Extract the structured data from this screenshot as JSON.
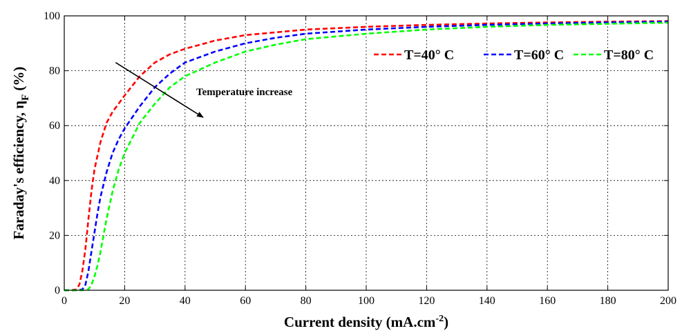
{
  "chart_data": {
    "type": "line",
    "xlabel": "Current density (mA.cm",
    "xlabel_sup": "-2",
    "xlabel_end": ")",
    "ylabel": "Faraday's efficiency, η",
    "ylabel_sub": "F",
    "ylabel_end": " (%)",
    "xlim": [
      0,
      200
    ],
    "ylim": [
      0,
      100
    ],
    "xticks": [
      0,
      20,
      40,
      60,
      80,
      100,
      120,
      140,
      160,
      180,
      200
    ],
    "yticks": [
      0,
      20,
      40,
      60,
      80,
      100
    ],
    "grid": true,
    "legend_position": "top-right",
    "annotation": {
      "text": "Temperature increase",
      "arrow_from": [
        17,
        83
      ],
      "arrow_to": [
        46,
        63
      ]
    },
    "series": [
      {
        "name": "T=40° C",
        "color": "#ff0000",
        "x": [
          0,
          2,
          4,
          5,
          6,
          7,
          8,
          9,
          10,
          12,
          14,
          16,
          18,
          20,
          25,
          30,
          35,
          40,
          50,
          60,
          70,
          80,
          100,
          120,
          140,
          160,
          180,
          200
        ],
        "y": [
          0,
          0,
          0.3,
          2,
          7,
          15,
          26,
          36,
          44,
          54,
          61,
          65,
          68,
          71,
          78,
          83,
          86,
          88,
          91,
          93,
          94,
          95,
          96,
          96.7,
          97.2,
          97.6,
          97.9,
          98.1
        ]
      },
      {
        "name": "T=60° C",
        "color": "#0000ff",
        "x": [
          0,
          4,
          6,
          7,
          8,
          9,
          10,
          11,
          12,
          14,
          16,
          18,
          20,
          25,
          30,
          35,
          40,
          50,
          60,
          70,
          80,
          100,
          120,
          140,
          160,
          180,
          200
        ],
        "y": [
          0,
          0,
          0.3,
          2,
          7,
          14,
          21,
          28,
          34,
          43,
          50,
          55,
          59,
          67,
          74,
          79,
          83,
          87,
          90,
          92,
          93.5,
          95,
          96,
          96.7,
          97.2,
          97.6,
          97.9
        ]
      },
      {
        "name": "T=80° C",
        "color": "#00ff00",
        "x": [
          0,
          6,
          8,
          9,
          10,
          11,
          12,
          13,
          14,
          16,
          18,
          20,
          25,
          30,
          35,
          40,
          50,
          60,
          70,
          80,
          100,
          120,
          140,
          160,
          180,
          200
        ],
        "y": [
          0,
          0,
          0.3,
          2,
          5,
          9,
          14,
          20,
          26,
          36,
          44,
          50,
          61,
          68,
          74,
          78,
          83,
          87,
          89.5,
          91.5,
          93.5,
          95,
          96,
          96.7,
          97.1,
          97.5
        ]
      }
    ]
  }
}
